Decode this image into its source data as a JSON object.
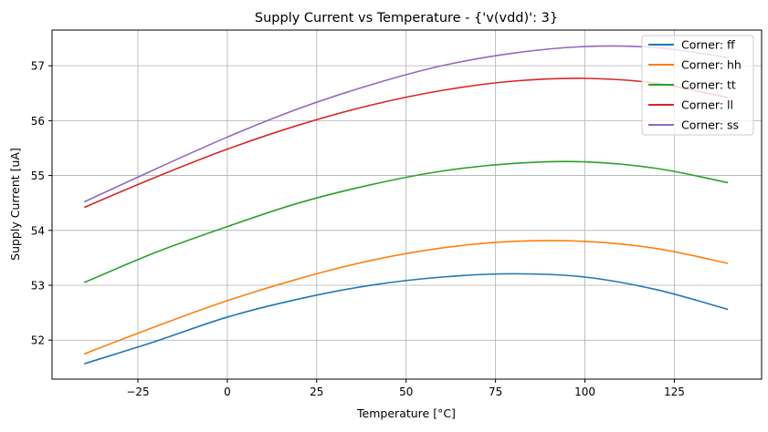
{
  "chart_data": {
    "type": "line",
    "title": "Supply Current vs Temperature - {'v(vdd)': 3}",
    "xlabel": "Temperature [°C]",
    "ylabel": "Supply Current [uA]",
    "xlim": [
      -49,
      149.4
    ],
    "ylim": [
      51.29,
      57.65
    ],
    "grid": true,
    "legend_position": "top-right",
    "xticks": [
      -25,
      0,
      25,
      50,
      75,
      100,
      125
    ],
    "xtick_labels": [
      "−25",
      "0",
      "25",
      "50",
      "75",
      "100",
      "125"
    ],
    "yticks": [
      52,
      53,
      54,
      55,
      56,
      57
    ],
    "ytick_labels": [
      "52",
      "53",
      "54",
      "55",
      "56",
      "57"
    ],
    "x": [
      -40,
      -20,
      0,
      20,
      40,
      60,
      80,
      100,
      120,
      140
    ],
    "series": [
      {
        "name": "Corner: ff",
        "color": "#1f77b4",
        "values": [
          51.57,
          51.98,
          52.42,
          52.75,
          53.0,
          53.15,
          53.21,
          53.15,
          52.92,
          52.56
        ]
      },
      {
        "name": "Corner: hh",
        "color": "#ff7f0e",
        "values": [
          51.75,
          52.25,
          52.72,
          53.12,
          53.45,
          53.68,
          53.8,
          53.8,
          53.67,
          53.4
        ]
      },
      {
        "name": "Corner: tt",
        "color": "#2ca02c",
        "values": [
          53.05,
          53.6,
          54.07,
          54.5,
          54.83,
          55.08,
          55.22,
          55.25,
          55.13,
          54.87
        ]
      },
      {
        "name": "Corner: ll",
        "color": "#d62728",
        "values": [
          54.42,
          54.97,
          55.48,
          55.92,
          56.28,
          56.55,
          56.72,
          56.77,
          56.68,
          56.42
        ]
      },
      {
        "name": "Corner: ss",
        "color": "#9467bd",
        "values": [
          54.52,
          55.12,
          55.7,
          56.22,
          56.65,
          57.0,
          57.23,
          57.35,
          57.33,
          57.15
        ]
      }
    ]
  }
}
